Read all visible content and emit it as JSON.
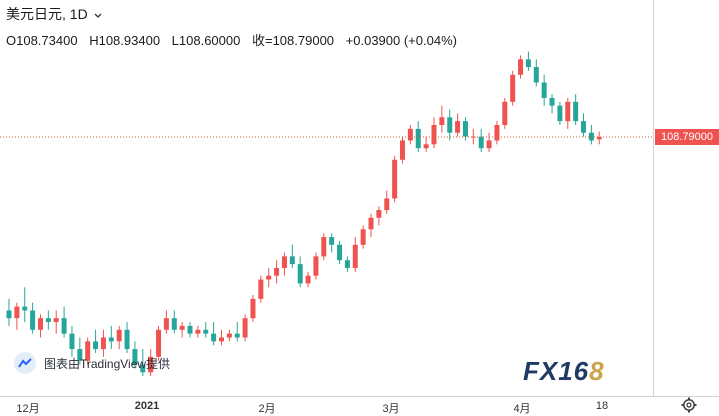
{
  "header": {
    "symbol": "美元日元,",
    "interval": "1D",
    "open": "O108.73400",
    "high": "H108.93400",
    "low": "L108.60000",
    "close": "收=108.79000",
    "change": "+0.03900 (+0.04%)"
  },
  "last_price_label": "108.79000",
  "watermark": {
    "tradingview_text": "图表由TradingView提供",
    "logo_main": "FX16",
    "logo_accent": "8"
  },
  "x_ticks": [
    "12月",
    "2021",
    "2月",
    "3月",
    "4月",
    "18"
  ],
  "colors": {
    "up": "#ef5350",
    "down": "#26a69a",
    "price_line": "#d15b33",
    "tag": "#ef5350"
  },
  "icons": {
    "settings": "gear-icon",
    "dropdown": "chevron-down-icon",
    "tv": "tradingview-logo-icon"
  },
  "chart_data": {
    "type": "candlestick",
    "title": "美元日元, 1D",
    "x_ticks": [
      "12月",
      "2021",
      "2月",
      "3月",
      "4月",
      "18"
    ],
    "ylim": [
      102.5,
      111.3
    ],
    "last_price": 108.79,
    "candles": [
      {
        "o": 104.3,
        "h": 104.6,
        "l": 103.9,
        "c": 104.1
      },
      {
        "o": 104.1,
        "h": 104.5,
        "l": 103.8,
        "c": 104.4
      },
      {
        "o": 104.4,
        "h": 104.9,
        "l": 104.0,
        "c": 104.3
      },
      {
        "o": 104.3,
        "h": 104.5,
        "l": 103.7,
        "c": 103.8
      },
      {
        "o": 103.8,
        "h": 104.2,
        "l": 103.6,
        "c": 104.1
      },
      {
        "o": 104.1,
        "h": 104.3,
        "l": 103.8,
        "c": 104.0
      },
      {
        "o": 104.0,
        "h": 104.3,
        "l": 103.7,
        "c": 104.1
      },
      {
        "o": 104.1,
        "h": 104.4,
        "l": 103.6,
        "c": 103.7
      },
      {
        "o": 103.7,
        "h": 103.9,
        "l": 103.1,
        "c": 103.3
      },
      {
        "o": 103.3,
        "h": 103.6,
        "l": 102.9,
        "c": 103.0
      },
      {
        "o": 103.0,
        "h": 103.6,
        "l": 102.9,
        "c": 103.5
      },
      {
        "o": 103.5,
        "h": 103.8,
        "l": 103.2,
        "c": 103.3
      },
      {
        "o": 103.3,
        "h": 103.8,
        "l": 103.1,
        "c": 103.6
      },
      {
        "o": 103.6,
        "h": 103.9,
        "l": 103.3,
        "c": 103.5
      },
      {
        "o": 103.5,
        "h": 103.9,
        "l": 103.3,
        "c": 103.8
      },
      {
        "o": 103.8,
        "h": 104.0,
        "l": 103.2,
        "c": 103.3
      },
      {
        "o": 103.3,
        "h": 103.5,
        "l": 102.8,
        "c": 102.9
      },
      {
        "o": 102.9,
        "h": 103.3,
        "l": 102.6,
        "c": 102.7
      },
      {
        "o": 102.7,
        "h": 103.3,
        "l": 102.6,
        "c": 103.1
      },
      {
        "o": 103.1,
        "h": 103.9,
        "l": 103.0,
        "c": 103.8
      },
      {
        "o": 103.8,
        "h": 104.3,
        "l": 103.7,
        "c": 104.1
      },
      {
        "o": 104.1,
        "h": 104.3,
        "l": 103.7,
        "c": 103.8
      },
      {
        "o": 103.8,
        "h": 104.0,
        "l": 103.6,
        "c": 103.9
      },
      {
        "o": 103.9,
        "h": 104.0,
        "l": 103.6,
        "c": 103.7
      },
      {
        "o": 103.7,
        "h": 103.9,
        "l": 103.6,
        "c": 103.8
      },
      {
        "o": 103.8,
        "h": 104.0,
        "l": 103.6,
        "c": 103.7
      },
      {
        "o": 103.7,
        "h": 104.0,
        "l": 103.4,
        "c": 103.5
      },
      {
        "o": 103.5,
        "h": 103.8,
        "l": 103.4,
        "c": 103.6
      },
      {
        "o": 103.6,
        "h": 103.8,
        "l": 103.5,
        "c": 103.7
      },
      {
        "o": 103.7,
        "h": 104.0,
        "l": 103.5,
        "c": 103.6
      },
      {
        "o": 103.6,
        "h": 104.2,
        "l": 103.5,
        "c": 104.1
      },
      {
        "o": 104.1,
        "h": 104.7,
        "l": 104.0,
        "c": 104.6
      },
      {
        "o": 104.6,
        "h": 105.2,
        "l": 104.5,
        "c": 105.1
      },
      {
        "o": 105.1,
        "h": 105.4,
        "l": 104.9,
        "c": 105.2
      },
      {
        "o": 105.2,
        "h": 105.6,
        "l": 105.0,
        "c": 105.4
      },
      {
        "o": 105.4,
        "h": 105.8,
        "l": 105.2,
        "c": 105.7
      },
      {
        "o": 105.7,
        "h": 106.0,
        "l": 105.4,
        "c": 105.5
      },
      {
        "o": 105.5,
        "h": 105.7,
        "l": 104.9,
        "c": 105.0
      },
      {
        "o": 105.0,
        "h": 105.3,
        "l": 104.9,
        "c": 105.2
      },
      {
        "o": 105.2,
        "h": 105.8,
        "l": 105.1,
        "c": 105.7
      },
      {
        "o": 105.7,
        "h": 106.3,
        "l": 105.6,
        "c": 106.2
      },
      {
        "o": 106.2,
        "h": 106.3,
        "l": 105.8,
        "c": 106.0
      },
      {
        "o": 106.0,
        "h": 106.1,
        "l": 105.5,
        "c": 105.6
      },
      {
        "o": 105.6,
        "h": 105.7,
        "l": 105.3,
        "c": 105.4
      },
      {
        "o": 105.4,
        "h": 106.2,
        "l": 105.3,
        "c": 106.0
      },
      {
        "o": 106.0,
        "h": 106.5,
        "l": 105.9,
        "c": 106.4
      },
      {
        "o": 106.4,
        "h": 106.8,
        "l": 106.2,
        "c": 106.7
      },
      {
        "o": 106.7,
        "h": 107.0,
        "l": 106.5,
        "c": 106.9
      },
      {
        "o": 106.9,
        "h": 107.4,
        "l": 106.8,
        "c": 107.2
      },
      {
        "o": 107.2,
        "h": 108.3,
        "l": 107.1,
        "c": 108.2
      },
      {
        "o": 108.2,
        "h": 108.8,
        "l": 108.1,
        "c": 108.7
      },
      {
        "o": 108.7,
        "h": 109.1,
        "l": 108.6,
        "c": 109.0
      },
      {
        "o": 109.0,
        "h": 109.2,
        "l": 108.4,
        "c": 108.5
      },
      {
        "o": 108.5,
        "h": 108.8,
        "l": 108.4,
        "c": 108.6
      },
      {
        "o": 108.6,
        "h": 109.3,
        "l": 108.5,
        "c": 109.1
      },
      {
        "o": 109.1,
        "h": 109.6,
        "l": 108.9,
        "c": 109.3
      },
      {
        "o": 109.3,
        "h": 109.5,
        "l": 108.7,
        "c": 108.9
      },
      {
        "o": 108.9,
        "h": 109.4,
        "l": 108.8,
        "c": 109.2
      },
      {
        "o": 109.2,
        "h": 109.3,
        "l": 108.7,
        "c": 108.8
      },
      {
        "o": 108.8,
        "h": 109.0,
        "l": 108.6,
        "c": 108.8
      },
      {
        "o": 108.8,
        "h": 109.0,
        "l": 108.4,
        "c": 108.5
      },
      {
        "o": 108.5,
        "h": 108.9,
        "l": 108.4,
        "c": 108.7
      },
      {
        "o": 108.7,
        "h": 109.2,
        "l": 108.6,
        "c": 109.1
      },
      {
        "o": 109.1,
        "h": 109.8,
        "l": 109.0,
        "c": 109.7
      },
      {
        "o": 109.7,
        "h": 110.5,
        "l": 109.6,
        "c": 110.4
      },
      {
        "o": 110.4,
        "h": 110.9,
        "l": 110.3,
        "c": 110.8
      },
      {
        "o": 110.8,
        "h": 111.0,
        "l": 110.5,
        "c": 110.6
      },
      {
        "o": 110.6,
        "h": 110.8,
        "l": 110.1,
        "c": 110.2
      },
      {
        "o": 110.2,
        "h": 110.4,
        "l": 109.6,
        "c": 109.8
      },
      {
        "o": 109.8,
        "h": 109.9,
        "l": 109.4,
        "c": 109.6
      },
      {
        "o": 109.6,
        "h": 109.7,
        "l": 109.1,
        "c": 109.2
      },
      {
        "o": 109.2,
        "h": 109.8,
        "l": 109.0,
        "c": 109.7
      },
      {
        "o": 109.7,
        "h": 109.9,
        "l": 109.1,
        "c": 109.2
      },
      {
        "o": 109.2,
        "h": 109.4,
        "l": 108.8,
        "c": 108.9
      },
      {
        "o": 108.9,
        "h": 109.1,
        "l": 108.6,
        "c": 108.7
      },
      {
        "o": 108.73,
        "h": 108.93,
        "l": 108.6,
        "c": 108.79
      }
    ]
  }
}
